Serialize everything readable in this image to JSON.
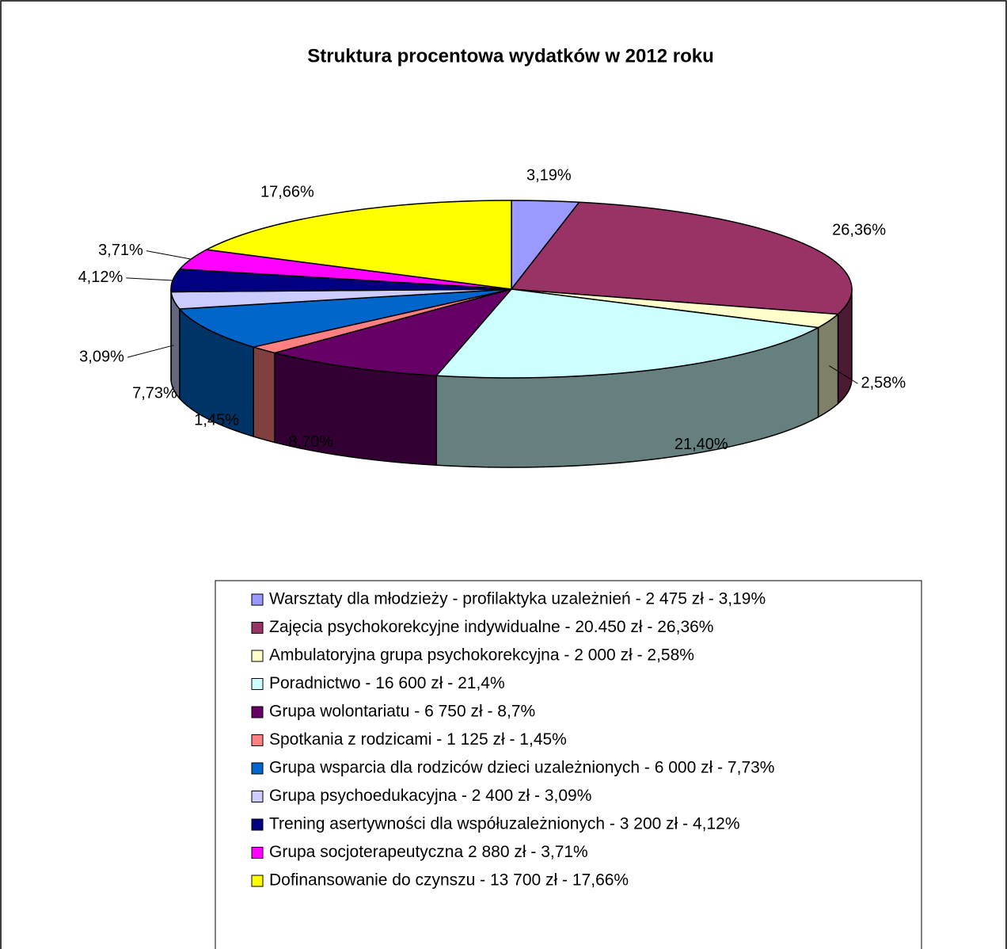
{
  "chart_data": {
    "type": "pie3d",
    "title": "Struktura procentowa wydatków w 2012 roku",
    "categories": [
      "Warsztaty dla młodzieży - profilaktyka uzależnień - 2 475 zł - 3,19%",
      "Zajęcia psychokorekcyjne indywidualne - 20.450 zł - 26,36%",
      "Ambulatoryjna grupa psychokorekcyjna - 2 000 zł - 2,58%",
      "Poradnictwo - 16 600 zł - 21,4%",
      "Grupa wolontariatu - 6 750 zł - 8,7%",
      "Spotkania z rodzicami - 1 125 zł - 1,45%",
      "Grupa wsparcia dla rodziców dzieci uzależnionych - 6 000 zł - 7,73%",
      "Grupa psychoedukacyjna - 2 400 zł - 3,09%",
      "Trening asertywności dla współuzależnionych - 3 200 zł - 4,12%",
      "Grupa socjoterapeutyczna 2 880 zł - 3,71%",
      "Dofinansowanie do czynszu - 13 700 zł - 17,66%"
    ],
    "values": [
      3.19,
      26.36,
      2.58,
      21.4,
      8.7,
      1.45,
      7.73,
      3.09,
      4.12,
      3.71,
      17.66
    ],
    "value_labels": [
      "3,19%",
      "26,36%",
      "2,58%",
      "21,40%",
      "8,70%",
      "1,45%",
      "7,73%",
      "3,09%",
      "4,12%",
      "3,71%",
      "17,66%"
    ],
    "colors": [
      "#9999ff",
      "#993366",
      "#ffffcc",
      "#ccffff",
      "#660066",
      "#ff8080",
      "#0066cc",
      "#ccccff",
      "#000080",
      "#ff00ff",
      "#ffff00"
    ]
  }
}
